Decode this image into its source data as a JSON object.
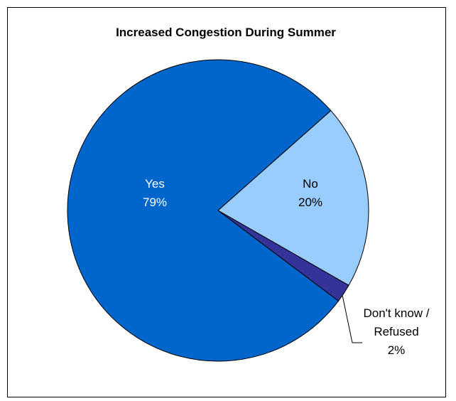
{
  "chart_data": {
    "type": "pie",
    "title": "Increased Congestion During Summer",
    "slices": [
      {
        "label": "Yes",
        "value_text": "79%",
        "value": 79,
        "color": "#0066CC",
        "text_color": "#ffffff"
      },
      {
        "label": "No",
        "value_text": "20%",
        "value": 20,
        "color": "#99CCFF",
        "text_color": "#000000"
      },
      {
        "label_lines": [
          "Don't know /",
          "Refused"
        ],
        "value_text": "2%",
        "value": 2,
        "color": "#333399",
        "text_color": "#000000"
      }
    ]
  }
}
